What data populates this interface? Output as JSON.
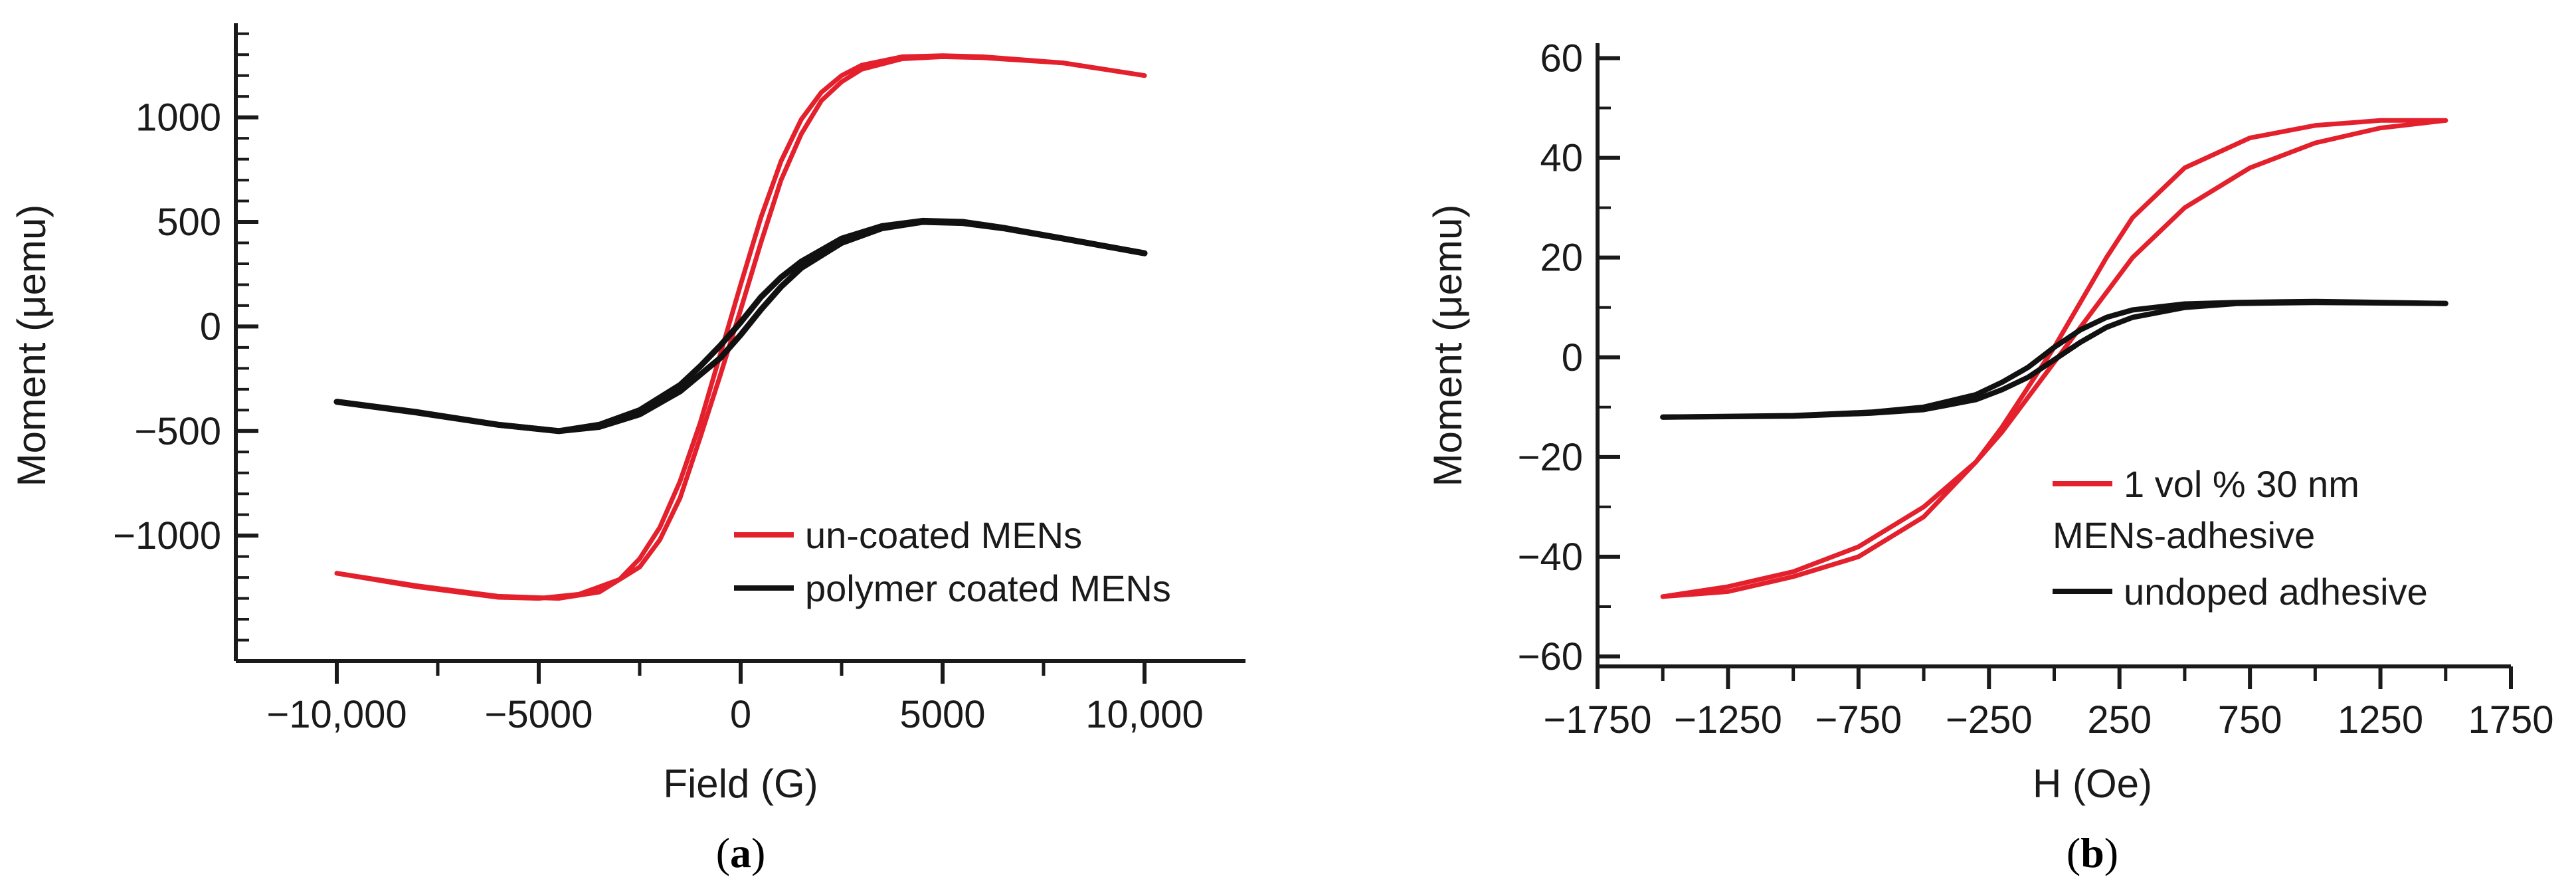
{
  "colors": {
    "red": "#e3202c",
    "black": "#111111",
    "axis": "#1a1a1a"
  },
  "chart_data": [
    {
      "type": "line",
      "panel": "a",
      "panel_label": {
        "open": "(",
        "letter": "a",
        "close": ")"
      },
      "xlabel": "Field (G)",
      "ylabel": "Moment (μemu)",
      "xlim": [
        -12500,
        12500
      ],
      "ylim": [
        -1600,
        1450
      ],
      "xticks": [
        -10000,
        -5000,
        0,
        5000,
        10000
      ],
      "xtick_labels": [
        "−10,000",
        "−5000",
        "0",
        "5000",
        "10,000"
      ],
      "yticks": [
        -1000,
        -500,
        0,
        500,
        1000
      ],
      "ytick_labels": [
        "−1000",
        "−500",
        "0",
        "500",
        "1000"
      ],
      "x_minor_step": 2500,
      "y_minor_step": 100,
      "legend_position": "bottom-right",
      "series": [
        {
          "name": "un-coated MENs",
          "color": "red",
          "ascending": [
            [
              -10000,
              -1180
            ],
            [
              -8000,
              -1240
            ],
            [
              -6000,
              -1290
            ],
            [
              -4500,
              -1300
            ],
            [
              -3500,
              -1270
            ],
            [
              -2500,
              -1150
            ],
            [
              -2000,
              -1020
            ],
            [
              -1500,
              -820
            ],
            [
              -1000,
              -530
            ],
            [
              -500,
              -230
            ],
            [
              0,
              80
            ],
            [
              500,
              400
            ],
            [
              1000,
              700
            ],
            [
              1500,
              920
            ],
            [
              2000,
              1080
            ],
            [
              2500,
              1170
            ],
            [
              3000,
              1230
            ],
            [
              4000,
              1280
            ],
            [
              5000,
              1290
            ],
            [
              6000,
              1285
            ],
            [
              8000,
              1260
            ],
            [
              10000,
              1200
            ]
          ],
          "descending": [
            [
              10000,
              1200
            ],
            [
              8000,
              1260
            ],
            [
              6000,
              1290
            ],
            [
              5000,
              1295
            ],
            [
              4000,
              1290
            ],
            [
              3000,
              1250
            ],
            [
              2500,
              1200
            ],
            [
              2000,
              1120
            ],
            [
              1500,
              990
            ],
            [
              1000,
              790
            ],
            [
              500,
              520
            ],
            [
              0,
              200
            ],
            [
              -500,
              -130
            ],
            [
              -1000,
              -460
            ],
            [
              -1500,
              -740
            ],
            [
              -2000,
              -960
            ],
            [
              -2500,
              -1110
            ],
            [
              -3000,
              -1210
            ],
            [
              -4000,
              -1280
            ],
            [
              -5000,
              -1300
            ],
            [
              -6000,
              -1295
            ],
            [
              -8000,
              -1245
            ],
            [
              -10000,
              -1180
            ]
          ]
        },
        {
          "name": "polymer coated MENs",
          "color": "black",
          "ascending": [
            [
              -10000,
              -360
            ],
            [
              -8000,
              -410
            ],
            [
              -6000,
              -470
            ],
            [
              -4500,
              -500
            ],
            [
              -3500,
              -480
            ],
            [
              -2500,
              -420
            ],
            [
              -1500,
              -310
            ],
            [
              -1000,
              -230
            ],
            [
              -500,
              -150
            ],
            [
              0,
              -40
            ],
            [
              500,
              80
            ],
            [
              1000,
              190
            ],
            [
              1500,
              280
            ],
            [
              2500,
              400
            ],
            [
              3500,
              470
            ],
            [
              4500,
              500
            ],
            [
              5500,
              495
            ],
            [
              6500,
              470
            ],
            [
              8000,
              420
            ],
            [
              10000,
              350
            ]
          ],
          "descending": [
            [
              10000,
              350
            ],
            [
              8000,
              420
            ],
            [
              6500,
              472
            ],
            [
              5500,
              500
            ],
            [
              4500,
              505
            ],
            [
              3500,
              480
            ],
            [
              2500,
              420
            ],
            [
              1500,
              310
            ],
            [
              1000,
              235
            ],
            [
              500,
              140
            ],
            [
              0,
              20
            ],
            [
              -500,
              -90
            ],
            [
              -1000,
              -190
            ],
            [
              -1500,
              -280
            ],
            [
              -2500,
              -400
            ],
            [
              -3500,
              -470
            ],
            [
              -4500,
              -500
            ],
            [
              -6000,
              -470
            ],
            [
              -8000,
              -412
            ],
            [
              -10000,
              -360
            ]
          ]
        }
      ]
    },
    {
      "type": "line",
      "panel": "b",
      "panel_label": {
        "open": "(",
        "letter": "b",
        "close": ")"
      },
      "xlabel": "H (Oe)",
      "ylabel": "Moment (μemu)",
      "xlim": [
        -1750,
        1750
      ],
      "ylim": [
        -62,
        63
      ],
      "xticks": [
        -1750,
        -1250,
        -750,
        -250,
        250,
        750,
        1250,
        1750
      ],
      "xtick_labels": [
        "−1750",
        "−1250",
        "−750",
        "−250",
        "250",
        "750",
        "1250",
        "1750"
      ],
      "yticks": [
        -60,
        -40,
        -20,
        0,
        20,
        40,
        60
      ],
      "ytick_labels": [
        "−60",
        "−40",
        "−20",
        "0",
        "20",
        "40",
        "60"
      ],
      "x_minor_step": 250,
      "y_minor_step": 10,
      "legend_position": "bottom-right",
      "series": [
        {
          "name": "1 vol % 30 nm MENs-adhesive",
          "legend_lines": [
            "1 vol % 30 nm",
            "MENs-adhesive"
          ],
          "color": "red",
          "ascending": [
            [
              -1500,
              -48
            ],
            [
              -1250,
              -46
            ],
            [
              -1000,
              -43
            ],
            [
              -750,
              -38
            ],
            [
              -500,
              -30
            ],
            [
              -300,
              -21
            ],
            [
              -200,
              -15
            ],
            [
              -100,
              -8
            ],
            [
              0,
              -1
            ],
            [
              100,
              6
            ],
            [
              200,
              13
            ],
            [
              300,
              20
            ],
            [
              500,
              30
            ],
            [
              750,
              38
            ],
            [
              1000,
              43
            ],
            [
              1250,
              46
            ],
            [
              1500,
              47.5
            ]
          ],
          "descending": [
            [
              1500,
              47.5
            ],
            [
              1250,
              47.5
            ],
            [
              1000,
              46.5
            ],
            [
              750,
              44
            ],
            [
              500,
              38
            ],
            [
              300,
              28
            ],
            [
              200,
              20
            ],
            [
              100,
              11
            ],
            [
              0,
              2
            ],
            [
              -100,
              -6
            ],
            [
              -200,
              -14
            ],
            [
              -300,
              -21
            ],
            [
              -500,
              -32
            ],
            [
              -750,
              -40
            ],
            [
              -1000,
              -44
            ],
            [
              -1250,
              -47
            ],
            [
              -1500,
              -48
            ]
          ]
        },
        {
          "name": "undoped adhesive",
          "color": "black",
          "ascending": [
            [
              -1500,
              -12
            ],
            [
              -1000,
              -11.8
            ],
            [
              -700,
              -11.2
            ],
            [
              -500,
              -10.5
            ],
            [
              -300,
              -8.5
            ],
            [
              -200,
              -6.5
            ],
            [
              -100,
              -4
            ],
            [
              0,
              -0.5
            ],
            [
              100,
              3
            ],
            [
              200,
              6
            ],
            [
              300,
              8
            ],
            [
              500,
              10
            ],
            [
              700,
              10.8
            ],
            [
              1000,
              11
            ],
            [
              1500,
              10.8
            ]
          ],
          "descending": [
            [
              1500,
              10.8
            ],
            [
              1000,
              11.2
            ],
            [
              700,
              11
            ],
            [
              500,
              10.7
            ],
            [
              300,
              9.5
            ],
            [
              200,
              8
            ],
            [
              100,
              5.5
            ],
            [
              0,
              2
            ],
            [
              -100,
              -2
            ],
            [
              -200,
              -5
            ],
            [
              -300,
              -7.5
            ],
            [
              -500,
              -10
            ],
            [
              -700,
              -11
            ],
            [
              -1000,
              -11.7
            ],
            [
              -1500,
              -12
            ]
          ]
        }
      ]
    }
  ]
}
